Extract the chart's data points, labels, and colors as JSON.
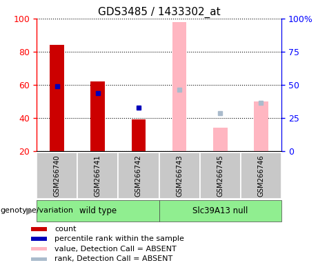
{
  "title": "GDS3485 / 1433302_at",
  "samples": [
    "GSM266740",
    "GSM266741",
    "GSM266742",
    "GSM266743",
    "GSM266745",
    "GSM266746"
  ],
  "present_bars": {
    "GSM266740": {
      "value": 84,
      "rank": 59
    },
    "GSM266741": {
      "value": 62,
      "rank": 55
    },
    "GSM266742": {
      "value": 39,
      "rank": 46
    }
  },
  "absent_bars": {
    "GSM266743": {
      "value": 98,
      "rank": 57
    },
    "GSM266745": {
      "value": 34,
      "rank": 43
    },
    "GSM266746": {
      "value": 50,
      "rank": 49
    }
  },
  "bar_bottom": 20,
  "left_ylim": [
    20,
    100
  ],
  "right_ylim": [
    0,
    100
  ],
  "left_yticks": [
    20,
    40,
    60,
    80,
    100
  ],
  "right_yticks": [
    0,
    25,
    50,
    75,
    100
  ],
  "right_yticklabels": [
    "0",
    "25",
    "50",
    "75",
    "100%"
  ],
  "bar_width": 0.35,
  "present_bar_color": "#CC0000",
  "present_rank_color": "#0000BB",
  "absent_bar_color": "#FFB6C1",
  "absent_rank_color": "#AABBCC",
  "legend_items": [
    {
      "label": "count",
      "color": "#CC0000"
    },
    {
      "label": "percentile rank within the sample",
      "color": "#0000BB"
    },
    {
      "label": "value, Detection Call = ABSENT",
      "color": "#FFB6C1"
    },
    {
      "label": "rank, Detection Call = ABSENT",
      "color": "#AABBCC"
    }
  ],
  "group_label_text": "genotype/variation",
  "groups": [
    {
      "label": "wild type",
      "start": 0,
      "end": 3,
      "color": "#90EE90"
    },
    {
      "label": "Slc39A13 null",
      "start": 3,
      "end": 6,
      "color": "#90EE90"
    }
  ],
  "sample_box_color": "#C8C8C8",
  "title_fontsize": 11,
  "tick_fontsize": 9,
  "label_fontsize": 8.5
}
